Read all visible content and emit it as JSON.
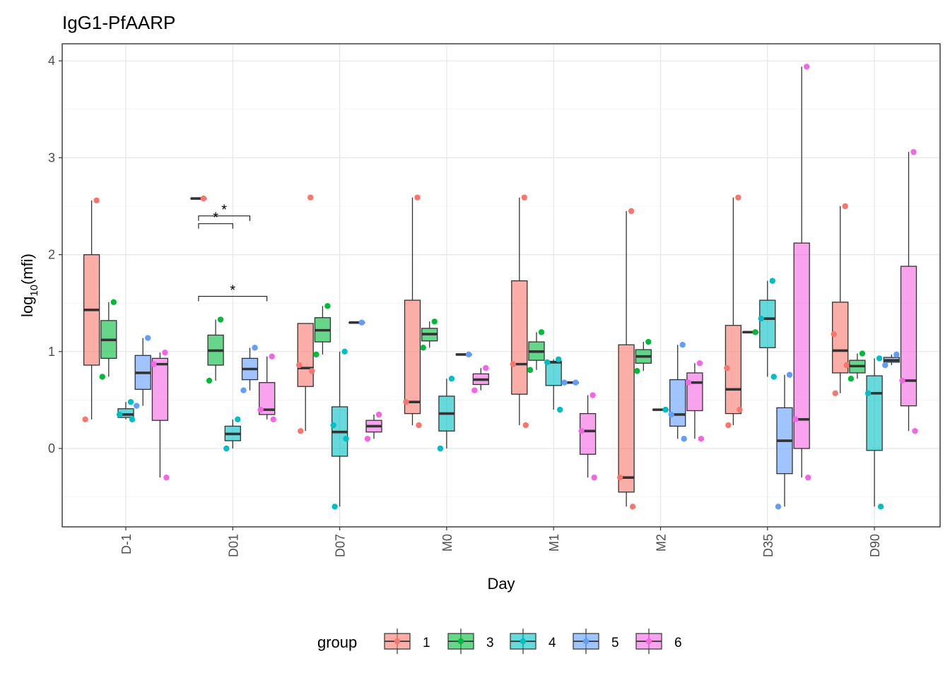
{
  "chart_data": {
    "type": "boxplot",
    "title": "IgG1-PfAARP",
    "xlabel": "Day",
    "ylabel_main": "log",
    "ylabel_sub": "10",
    "ylabel_arg": "(mfi)",
    "ylim": [
      -0.8,
      4.2
    ],
    "yticks": [
      "0",
      "1",
      "2",
      "3",
      "4"
    ],
    "grid": true,
    "legend_position": "bottom",
    "legend_title": "group",
    "categories": [
      "D-1",
      "D01",
      "D07",
      "M0",
      "M1",
      "M2",
      "D35",
      "D90"
    ],
    "groups": [
      {
        "name": "1",
        "color": "#F8766D"
      },
      {
        "name": "3",
        "color": "#00BA38"
      },
      {
        "name": "4",
        "color": "#00BFC4"
      },
      {
        "name": "5",
        "color": "#619CFF"
      },
      {
        "name": "6",
        "color": "#F564E3"
      }
    ],
    "boxes": [
      {
        "day": "D-1",
        "group": "1",
        "whislo": 0.3,
        "q1": 0.86,
        "median": 1.43,
        "q3": 2.0,
        "whishi": 2.56,
        "points": [
          2.56,
          0.3
        ]
      },
      {
        "day": "D-1",
        "group": "3",
        "whislo": 0.74,
        "q1": 0.93,
        "median": 1.12,
        "q3": 1.32,
        "whishi": 1.51,
        "points": [
          1.51,
          0.74
        ]
      },
      {
        "day": "D-1",
        "group": "4",
        "whislo": 0.3,
        "q1": 0.32,
        "median": 0.35,
        "q3": 0.41,
        "whishi": 0.48,
        "points": [
          0.48,
          0.35,
          0.3
        ]
      },
      {
        "day": "D-1",
        "group": "5",
        "whislo": 0.44,
        "q1": 0.61,
        "median": 0.78,
        "q3": 0.96,
        "whishi": 1.14,
        "points": [
          1.14,
          0.44
        ]
      },
      {
        "day": "D-1",
        "group": "6",
        "whislo": -0.3,
        "q1": 0.29,
        "median": 0.87,
        "q3": 0.93,
        "whishi": 0.99,
        "points": [
          0.99,
          0.87,
          -0.3
        ]
      },
      {
        "day": "D01",
        "group": "1",
        "whislo": 2.58,
        "q1": 2.58,
        "median": 2.58,
        "q3": 2.58,
        "whishi": 2.58,
        "points": [
          2.58
        ]
      },
      {
        "day": "D01",
        "group": "3",
        "whislo": 0.7,
        "q1": 0.86,
        "median": 1.01,
        "q3": 1.17,
        "whishi": 1.33,
        "points": [
          1.33,
          0.7
        ]
      },
      {
        "day": "D01",
        "group": "4",
        "whislo": 0.0,
        "q1": 0.08,
        "median": 0.15,
        "q3": 0.23,
        "whishi": 0.3,
        "points": [
          0.3,
          0.0
        ]
      },
      {
        "day": "D01",
        "group": "5",
        "whislo": 0.6,
        "q1": 0.71,
        "median": 0.82,
        "q3": 0.93,
        "whishi": 1.04,
        "points": [
          1.04,
          0.6
        ]
      },
      {
        "day": "D01",
        "group": "6",
        "whislo": 0.3,
        "q1": 0.35,
        "median": 0.4,
        "q3": 0.68,
        "whishi": 0.95,
        "points": [
          0.95,
          0.4,
          0.3
        ]
      },
      {
        "day": "D07",
        "group": "1",
        "whislo": 0.18,
        "q1": 0.64,
        "median": 0.83,
        "q3": 1.29,
        "whishi": 1.29,
        "points": [
          2.59,
          0.86,
          0.8,
          0.18
        ]
      },
      {
        "day": "D07",
        "group": "3",
        "whislo": 0.97,
        "q1": 1.1,
        "median": 1.22,
        "q3": 1.35,
        "whishi": 1.47,
        "points": [
          1.47,
          0.97
        ]
      },
      {
        "day": "D07",
        "group": "4",
        "whislo": -0.6,
        "q1": -0.08,
        "median": 0.17,
        "q3": 0.43,
        "whishi": 1.0,
        "points": [
          1.0,
          0.24,
          0.1,
          -0.6
        ]
      },
      {
        "day": "D07",
        "group": "5",
        "whislo": 1.3,
        "q1": 1.3,
        "median": 1.3,
        "q3": 1.3,
        "whishi": 1.3,
        "points": [
          1.3
        ]
      },
      {
        "day": "D07",
        "group": "6",
        "whislo": 0.1,
        "q1": 0.17,
        "median": 0.23,
        "q3": 0.29,
        "whishi": 0.35,
        "points": [
          0.35,
          0.1
        ]
      },
      {
        "day": "M0",
        "group": "1",
        "whislo": 0.24,
        "q1": 0.36,
        "median": 0.48,
        "q3": 1.53,
        "whishi": 2.59,
        "points": [
          2.59,
          0.48,
          0.24
        ]
      },
      {
        "day": "M0",
        "group": "3",
        "whislo": 1.04,
        "q1": 1.11,
        "median": 1.18,
        "q3": 1.24,
        "whishi": 1.31,
        "points": [
          1.31,
          1.04
        ]
      },
      {
        "day": "M0",
        "group": "4",
        "whislo": 0.0,
        "q1": 0.18,
        "median": 0.36,
        "q3": 0.54,
        "whishi": 0.72,
        "points": [
          0.72,
          0.0
        ]
      },
      {
        "day": "M0",
        "group": "5",
        "whislo": 0.97,
        "q1": 0.97,
        "median": 0.97,
        "q3": 0.97,
        "whishi": 0.97,
        "points": [
          0.97
        ]
      },
      {
        "day": "M0",
        "group": "6",
        "whislo": 0.6,
        "q1": 0.66,
        "median": 0.71,
        "q3": 0.77,
        "whishi": 0.83,
        "points": [
          0.83,
          0.6
        ]
      },
      {
        "day": "M1",
        "group": "1",
        "whislo": 0.24,
        "q1": 0.56,
        "median": 0.87,
        "q3": 1.73,
        "whishi": 2.59,
        "points": [
          2.59,
          0.87,
          0.24
        ]
      },
      {
        "day": "M1",
        "group": "3",
        "whislo": 0.81,
        "q1": 0.91,
        "median": 1.0,
        "q3": 1.1,
        "whishi": 1.2,
        "points": [
          1.2,
          0.81
        ]
      },
      {
        "day": "M1",
        "group": "4",
        "whislo": 0.4,
        "q1": 0.65,
        "median": 0.89,
        "q3": 0.9,
        "whishi": 0.92,
        "points": [
          0.92,
          0.89,
          0.4
        ]
      },
      {
        "day": "M1",
        "group": "5",
        "whislo": 0.68,
        "q1": 0.68,
        "median": 0.68,
        "q3": 0.68,
        "whishi": 0.68,
        "points": [
          0.68,
          0.68
        ]
      },
      {
        "day": "M1",
        "group": "6",
        "whislo": -0.3,
        "q1": -0.06,
        "median": 0.18,
        "q3": 0.36,
        "whishi": 0.55,
        "points": [
          0.55,
          0.18,
          -0.3
        ]
      },
      {
        "day": "M2",
        "group": "1",
        "whislo": -0.6,
        "q1": -0.45,
        "median": -0.3,
        "q3": 1.07,
        "whishi": 2.45,
        "points": [
          2.45,
          -0.3,
          -0.6
        ]
      },
      {
        "day": "M2",
        "group": "3",
        "whislo": 0.8,
        "q1": 0.88,
        "median": 0.95,
        "q3": 1.02,
        "whishi": 1.1,
        "points": [
          1.1,
          0.8
        ]
      },
      {
        "day": "M2",
        "group": "4",
        "whislo": 0.4,
        "q1": 0.4,
        "median": 0.4,
        "q3": 0.4,
        "whishi": 0.4,
        "points": [
          0.4
        ]
      },
      {
        "day": "M2",
        "group": "5",
        "whislo": 0.1,
        "q1": 0.23,
        "median": 0.35,
        "q3": 0.71,
        "whishi": 1.07,
        "points": [
          1.07,
          0.35,
          0.1
        ]
      },
      {
        "day": "M2",
        "group": "6",
        "whislo": 0.1,
        "q1": 0.39,
        "median": 0.68,
        "q3": 0.78,
        "whishi": 0.88,
        "points": [
          0.88,
          0.68,
          0.1
        ]
      },
      {
        "day": "D35",
        "group": "1",
        "whislo": 0.24,
        "q1": 0.36,
        "median": 0.61,
        "q3": 1.27,
        "whishi": 2.59,
        "points": [
          2.59,
          0.83,
          0.4,
          0.24
        ]
      },
      {
        "day": "D35",
        "group": "3",
        "whislo": 1.2,
        "q1": 1.2,
        "median": 1.2,
        "q3": 1.2,
        "whishi": 1.2,
        "points": [
          1.2
        ]
      },
      {
        "day": "D35",
        "group": "4",
        "whislo": 0.74,
        "q1": 1.04,
        "median": 1.34,
        "q3": 1.53,
        "whishi": 1.73,
        "points": [
          1.73,
          1.34,
          0.74
        ]
      },
      {
        "day": "D35",
        "group": "5",
        "whislo": -0.6,
        "q1": -0.26,
        "median": 0.08,
        "q3": 0.42,
        "whishi": 0.76,
        "points": [
          0.76,
          -0.6
        ]
      },
      {
        "day": "D35",
        "group": "6",
        "whislo": -0.3,
        "q1": 0.0,
        "median": 0.3,
        "q3": 2.12,
        "whishi": 3.94,
        "points": [
          3.94,
          0.3,
          -0.3
        ]
      },
      {
        "day": "D90",
        "group": "1",
        "whislo": 0.57,
        "q1": 0.78,
        "median": 1.01,
        "q3": 1.51,
        "whishi": 2.5,
        "points": [
          2.5,
          1.18,
          0.86,
          0.57
        ]
      },
      {
        "day": "D90",
        "group": "3",
        "whislo": 0.72,
        "q1": 0.78,
        "median": 0.85,
        "q3": 0.91,
        "whishi": 0.98,
        "points": [
          0.98,
          0.72
        ]
      },
      {
        "day": "D90",
        "group": "4",
        "whislo": -0.6,
        "q1": -0.02,
        "median": 0.57,
        "q3": 0.75,
        "whishi": 0.93,
        "points": [
          0.93,
          0.57,
          -0.6
        ]
      },
      {
        "day": "D90",
        "group": "5",
        "whislo": 0.86,
        "q1": 0.89,
        "median": 0.91,
        "q3": 0.94,
        "whishi": 0.97,
        "points": [
          0.97,
          0.86
        ]
      },
      {
        "day": "D90",
        "group": "6",
        "whislo": 0.18,
        "q1": 0.44,
        "median": 0.7,
        "q3": 1.88,
        "whishi": 3.06,
        "points": [
          3.06,
          0.7,
          0.18
        ]
      }
    ],
    "annotations": [
      {
        "day": "D01",
        "from_group": "1",
        "to_group": "4",
        "y": 2.32,
        "label": "*"
      },
      {
        "day": "D01",
        "from_group": "1",
        "to_group": "5",
        "y": 2.4,
        "label": "*"
      },
      {
        "day": "D01",
        "from_group": "1",
        "to_group": "6",
        "y": 1.57,
        "label": "*"
      }
    ]
  }
}
